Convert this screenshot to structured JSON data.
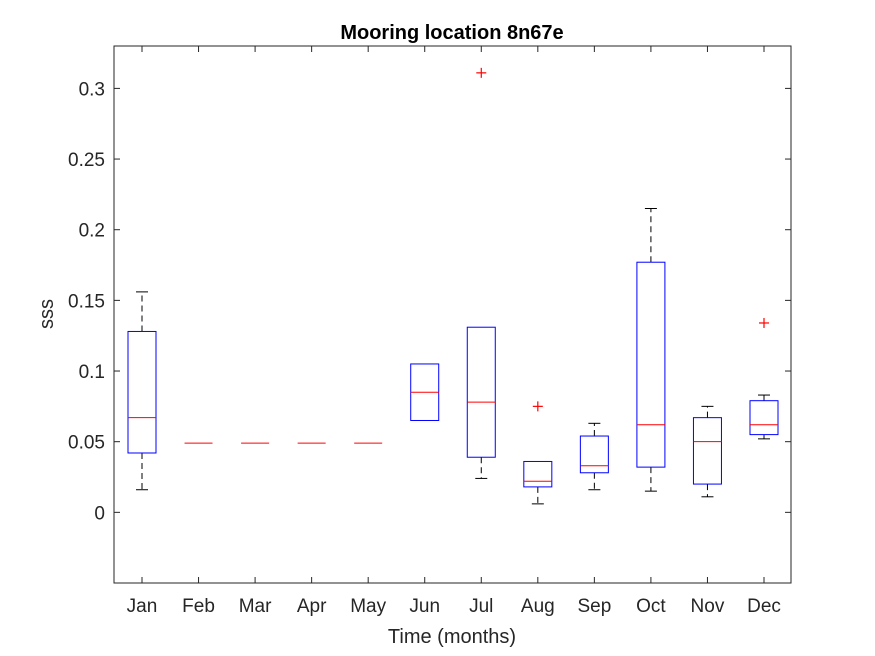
{
  "chart_data": {
    "type": "box",
    "title": "Mooring location 8n67e",
    "xlabel": "Time (months)",
    "ylabel": "sss",
    "ylim": [
      -0.05,
      0.33
    ],
    "yticks": [
      0,
      0.05,
      0.1,
      0.15,
      0.2,
      0.25,
      0.3
    ],
    "ytick_labels": [
      "0",
      "0.05",
      "0.1",
      "0.15",
      "0.2",
      "0.25",
      "0.3"
    ],
    "categories": [
      "Jan",
      "Feb",
      "Mar",
      "Apr",
      "May",
      "Jun",
      "Jul",
      "Aug",
      "Sep",
      "Oct",
      "Nov",
      "Dec"
    ],
    "grid": false,
    "colors": {
      "box": "#0000ff",
      "median": "#ff0000",
      "whisker": "#000000",
      "outlier": "#ff0000",
      "axes": "#262626"
    },
    "boxes": [
      {
        "month": "Jan",
        "q1": 0.042,
        "median": 0.067,
        "q3": 0.128,
        "whisker_low": 0.016,
        "whisker_high": 0.156,
        "outliers": []
      },
      {
        "month": "Feb",
        "q1": 0.049,
        "median": 0.049,
        "q3": 0.049,
        "whisker_low": 0.049,
        "whisker_high": 0.049,
        "outliers": []
      },
      {
        "month": "Mar",
        "q1": 0.049,
        "median": 0.049,
        "q3": 0.049,
        "whisker_low": 0.049,
        "whisker_high": 0.049,
        "outliers": []
      },
      {
        "month": "Apr",
        "q1": 0.049,
        "median": 0.049,
        "q3": 0.049,
        "whisker_low": 0.049,
        "whisker_high": 0.049,
        "outliers": []
      },
      {
        "month": "May",
        "q1": 0.049,
        "median": 0.049,
        "q3": 0.049,
        "whisker_low": 0.049,
        "whisker_high": 0.049,
        "outliers": []
      },
      {
        "month": "Jun",
        "q1": 0.065,
        "median": 0.085,
        "q3": 0.105,
        "whisker_low": 0.065,
        "whisker_high": 0.105,
        "outliers": []
      },
      {
        "month": "Jul",
        "q1": 0.039,
        "median": 0.078,
        "q3": 0.131,
        "whisker_low": 0.024,
        "whisker_high": 0.131,
        "outliers": [
          0.311
        ]
      },
      {
        "month": "Aug",
        "q1": 0.018,
        "median": 0.022,
        "q3": 0.036,
        "whisker_low": 0.006,
        "whisker_high": 0.036,
        "outliers": [
          0.075
        ]
      },
      {
        "month": "Sep",
        "q1": 0.028,
        "median": 0.033,
        "q3": 0.054,
        "whisker_low": 0.016,
        "whisker_high": 0.063,
        "outliers": []
      },
      {
        "month": "Oct",
        "q1": 0.032,
        "median": 0.062,
        "q3": 0.177,
        "whisker_low": 0.015,
        "whisker_high": 0.215,
        "outliers": []
      },
      {
        "month": "Nov",
        "q1": 0.02,
        "median": 0.05,
        "q3": 0.067,
        "whisker_low": 0.011,
        "whisker_high": 0.075,
        "outliers": []
      },
      {
        "month": "Dec",
        "q1": 0.055,
        "median": 0.062,
        "q3": 0.079,
        "whisker_low": 0.052,
        "whisker_high": 0.083,
        "outliers": [
          0.134
        ]
      }
    ]
  }
}
